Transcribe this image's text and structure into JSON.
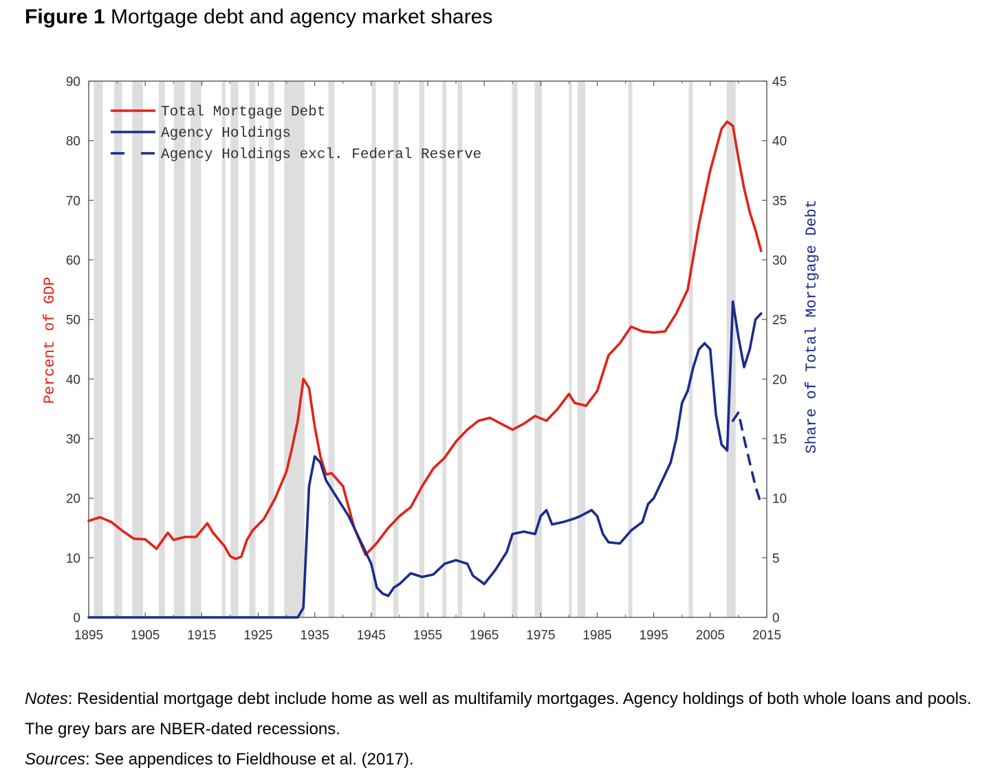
{
  "figure": {
    "label": "Figure 1",
    "title": "Mortgage debt and agency market shares"
  },
  "notes": {
    "notes_label": "Notes",
    "notes_text": ": Residential mortgage debt include home as well as multifamily mortgages. Agency holdings of both whole loans and pools. The grey bars are NBER-dated recessions.",
    "sources_label": "Sources",
    "sources_text": ": See appendices to Fieldhouse et al. (2017)."
  },
  "chart_data": {
    "type": "line",
    "title": "",
    "xlabel": "",
    "ylabel": "Percent of GDP",
    "ylabel_right": "Share of Total Mortgage Debt",
    "xlim": [
      1895,
      2015
    ],
    "ylim": [
      0,
      90
    ],
    "ylim_right": [
      0,
      45
    ],
    "x_ticks": [
      1895,
      1905,
      1915,
      1925,
      1935,
      1945,
      1955,
      1965,
      1975,
      1985,
      1995,
      2005,
      2015
    ],
    "y_ticks": [
      0,
      10,
      20,
      30,
      40,
      50,
      60,
      70,
      80,
      90
    ],
    "y_ticks_right": [
      0,
      5,
      10,
      15,
      20,
      25,
      30,
      35,
      40,
      45
    ],
    "legend_position": "top-left",
    "colors": {
      "total": "#e32219",
      "agency": "#1c2b8c",
      "recession": "#dedede"
    },
    "recessions": [
      [
        1895.9,
        1897.5
      ],
      [
        1899.5,
        1900.9
      ],
      [
        1902.7,
        1904.6
      ],
      [
        1907.4,
        1908.5
      ],
      [
        1910.1,
        1912.0
      ],
      [
        1913.0,
        1914.9
      ],
      [
        1918.6,
        1919.2
      ],
      [
        1920.1,
        1921.5
      ],
      [
        1923.4,
        1924.5
      ],
      [
        1926.8,
        1927.8
      ],
      [
        1929.6,
        1933.2
      ],
      [
        1937.4,
        1938.5
      ],
      [
        1945.1,
        1945.8
      ],
      [
        1948.9,
        1949.8
      ],
      [
        1953.5,
        1954.4
      ],
      [
        1957.6,
        1958.3
      ],
      [
        1960.3,
        1961.1
      ],
      [
        1969.9,
        1970.9
      ],
      [
        1973.9,
        1975.2
      ],
      [
        1980.0,
        1980.5
      ],
      [
        1981.5,
        1982.9
      ],
      [
        1990.5,
        1991.2
      ],
      [
        2001.2,
        2001.9
      ],
      [
        2007.9,
        2009.5
      ]
    ],
    "series": [
      {
        "name": "Total Mortgage Debt",
        "axis": "left",
        "style": "solid",
        "x": [
          1895,
          1897,
          1899,
          1901,
          1903,
          1905,
          1907,
          1909,
          1910,
          1912,
          1914,
          1916,
          1917,
          1919,
          1920,
          1921,
          1922,
          1923,
          1924,
          1926,
          1928,
          1930,
          1931,
          1932,
          1933,
          1934,
          1935,
          1936,
          1937,
          1938,
          1940,
          1942,
          1944,
          1946,
          1948,
          1950,
          1952,
          1954,
          1956,
          1958,
          1960,
          1962,
          1964,
          1966,
          1968,
          1970,
          1972,
          1974,
          1976,
          1978,
          1980,
          1981,
          1983,
          1985,
          1987,
          1989,
          1991,
          1993,
          1995,
          1997,
          1999,
          2001,
          2003,
          2005,
          2007,
          2008,
          2009,
          2010,
          2011,
          2012,
          2013,
          2014
        ],
        "y": [
          16.2,
          16.8,
          16.0,
          14.5,
          13.2,
          13.1,
          11.5,
          14.2,
          13.0,
          13.5,
          13.5,
          15.8,
          14.2,
          12.0,
          10.3,
          9.8,
          10.2,
          13.0,
          14.6,
          16.5,
          20.0,
          24.5,
          28.5,
          33.0,
          40.0,
          38.5,
          32.0,
          27.0,
          24.0,
          24.2,
          22.0,
          15.0,
          10.5,
          12.5,
          15.0,
          17.0,
          18.5,
          22.0,
          25.0,
          26.8,
          29.5,
          31.5,
          33.0,
          33.5,
          32.5,
          31.5,
          32.5,
          33.8,
          33.0,
          35.0,
          37.5,
          36.0,
          35.5,
          38.0,
          44.0,
          46.0,
          48.8,
          48.0,
          47.8,
          48.0,
          51.0,
          55.0,
          66.0,
          75.0,
          82.0,
          83.2,
          82.5,
          77.0,
          72.0,
          68.0,
          65.0,
          61.5
        ]
      },
      {
        "name": "Agency Holdings",
        "axis": "right",
        "style": "solid",
        "x": [
          1895,
          1932,
          1933,
          1934,
          1935,
          1936,
          1937,
          1939,
          1941,
          1943,
          1945,
          1946,
          1947,
          1948,
          1949,
          1950,
          1952,
          1954,
          1956,
          1958,
          1960,
          1962,
          1963,
          1965,
          1967,
          1969,
          1970,
          1972,
          1974,
          1975,
          1976,
          1977,
          1979,
          1981,
          1982,
          1984,
          1985,
          1986,
          1987,
          1989,
          1991,
          1993,
          1994,
          1995,
          1997,
          1998,
          1999,
          2000,
          2001,
          2002,
          2003,
          2004,
          2005,
          2006,
          2007,
          2008,
          2009,
          2010,
          2011,
          2012,
          2013,
          2014
        ],
        "y": [
          0,
          0,
          0.8,
          11.0,
          13.5,
          13.0,
          11.5,
          10.0,
          8.5,
          6.5,
          4.5,
          2.5,
          2.0,
          1.8,
          2.5,
          2.8,
          3.7,
          3.4,
          3.6,
          4.5,
          4.8,
          4.5,
          3.5,
          2.8,
          4.0,
          5.5,
          7.0,
          7.2,
          7.0,
          8.5,
          9.0,
          7.8,
          8.0,
          8.3,
          8.5,
          9.0,
          8.5,
          7.0,
          6.3,
          6.2,
          7.3,
          8.0,
          9.5,
          10.0,
          12.0,
          13.0,
          15.0,
          18.0,
          19.0,
          21.0,
          22.5,
          23.0,
          22.5,
          17.0,
          14.5,
          14.0,
          26.5,
          23.5,
          21.0,
          22.5,
          25.0,
          25.5
        ]
      },
      {
        "name": "Agency Holdings excl. Federal Reserve",
        "axis": "right",
        "style": "dashed",
        "x": [
          2009,
          2010,
          2011,
          2012,
          2013,
          2014
        ],
        "y": [
          16.5,
          17.2,
          15.0,
          13.0,
          11.0,
          9.5
        ]
      }
    ]
  }
}
